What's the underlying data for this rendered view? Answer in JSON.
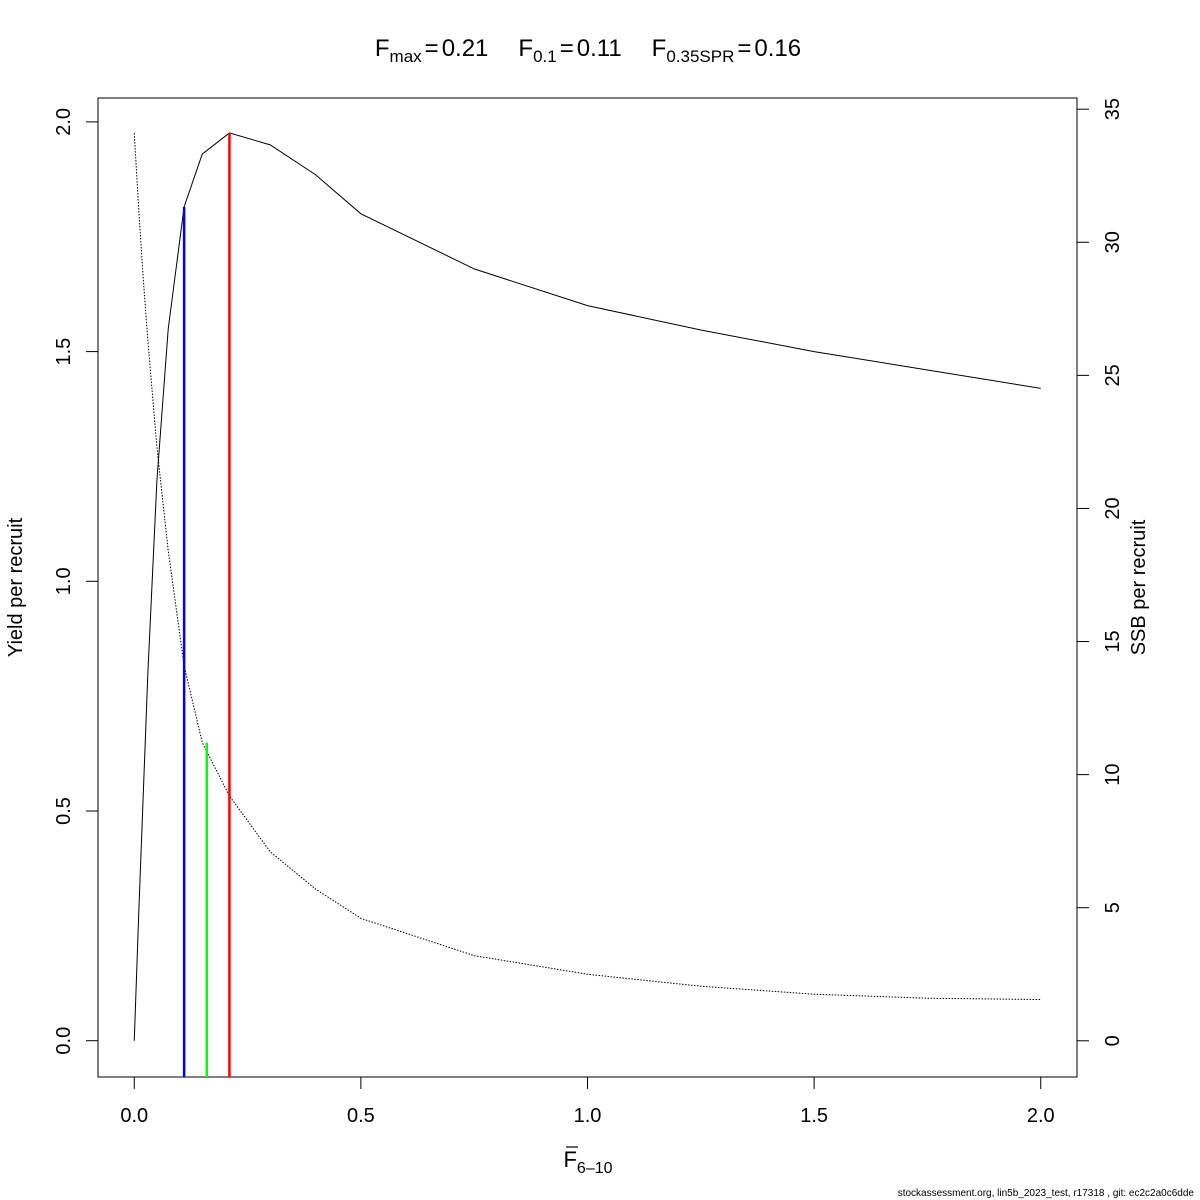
{
  "chart_data": {
    "type": "line",
    "title": [
      {
        "symbol": "F",
        "subscript": "max",
        "relation": "=",
        "value": 0.21
      },
      {
        "symbol": "F",
        "subscript": "0.1",
        "relation": "=",
        "value": 0.11
      },
      {
        "symbol": "F",
        "subscript": "0.35SPR",
        "relation": "=",
        "value": 0.16
      }
    ],
    "xlabel": {
      "symbol": "F",
      "subscript": "6–10"
    },
    "ylabel": "Yield per recruit",
    "y2label": "SSB per recruit",
    "footer": "stockassessment.org, lin5b_2023_test, r17318 , git: ec2c2a0c6dde",
    "x": [
      0,
      0.01,
      0.02,
      0.03,
      0.05,
      0.075,
      0.11,
      0.15,
      0.21,
      0.3,
      0.4,
      0.5,
      0.75,
      1.0,
      1.25,
      1.5,
      1.75,
      2.0
    ],
    "series": [
      {
        "name": "Yield per recruit",
        "color": "#000000",
        "axis": "y",
        "values": [
          0,
          0.28,
          0.54,
          0.8,
          1.22,
          1.55,
          1.815,
          1.93,
          1.976,
          1.95,
          1.885,
          1.8,
          1.68,
          1.6,
          1.547,
          1.5,
          1.46,
          1.42
        ]
      },
      {
        "name": "SSB per recruit",
        "color": "#000000",
        "axis": "y2",
        "dash": true,
        "values": [
          34.1,
          31.2,
          28.6,
          26.3,
          22.3,
          18.4,
          14.1,
          11.2,
          9.2,
          7.1,
          5.7,
          4.6,
          3.2,
          2.5,
          2.05,
          1.75,
          1.6,
          1.55
        ]
      }
    ],
    "reference_lines": [
      {
        "x": 0.11,
        "value": 1.815,
        "axis": "y",
        "color": "#0000ff"
      },
      {
        "x": 0.16,
        "value": 11.2,
        "axis": "y2",
        "color": "#00ff00"
      },
      {
        "x": 0.21,
        "value": 1.976,
        "axis": "y",
        "color": "#ff0000"
      }
    ],
    "xlim": [
      -0.08,
      2.08
    ],
    "ylim": [
      -0.079,
      2.052
    ],
    "y2lim": [
      -1.36,
      35.42
    ],
    "xticks": [
      {
        "value": 0,
        "label": "0.0"
      },
      0.5,
      {
        "value": 1,
        "label": "1.0"
      },
      1.5,
      {
        "value": 2,
        "label": "2.0"
      }
    ],
    "yticks": [
      {
        "value": 0,
        "label": "0.0"
      },
      0.5,
      {
        "value": 1,
        "label": "1.0"
      },
      1.5,
      {
        "value": 2,
        "label": "2.0"
      }
    ],
    "y2ticks": [
      0,
      5,
      10,
      15,
      20,
      25,
      30,
      35
    ]
  }
}
